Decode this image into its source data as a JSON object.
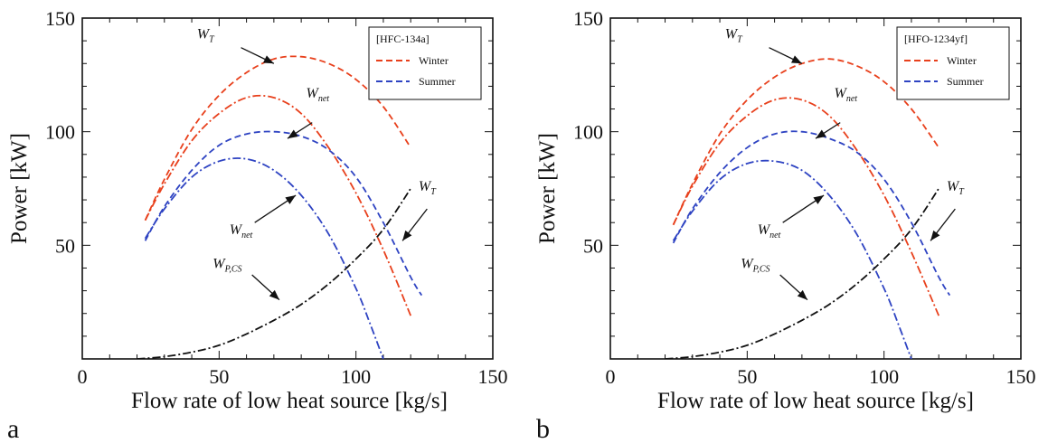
{
  "colors": {
    "winter": "#e8401c",
    "summer": "#2e43c2",
    "pump": "#111111",
    "axis": "#111111"
  },
  "chart_data": [
    {
      "type": "line",
      "panel": "a",
      "xlabel": "Flow rate of low heat source [kg/s]",
      "ylabel": "Power [kW]",
      "xlim": [
        0,
        150
      ],
      "ylim": [
        0,
        150
      ],
      "xticks": [
        "0",
        "50",
        "100",
        "150"
      ],
      "yticks": [
        "50",
        "100",
        "150"
      ],
      "legend": {
        "title": "[HFC-134a]",
        "placement": "top-right",
        "entries": [
          "Winter",
          "Summer"
        ]
      },
      "series": [
        {
          "name": "Winter",
          "quantity": "W_T",
          "style": "dashed",
          "color": "winter",
          "x": [
            23,
            30,
            40,
            50,
            60,
            70,
            80,
            90,
            100,
            110,
            120
          ],
          "y": [
            61,
            79,
            101,
            116,
            126,
            132,
            133,
            130,
            123,
            111,
            93
          ]
        },
        {
          "name": "Winter",
          "quantity": "W_net",
          "style": "dashdot",
          "color": "winter",
          "x": [
            23,
            30,
            40,
            50,
            60,
            70,
            80,
            90,
            100,
            110,
            120
          ],
          "y": [
            61,
            77,
            96,
            108,
            115,
            115,
            108,
            93,
            73,
            48,
            19
          ]
        },
        {
          "name": "Summer",
          "quantity": "W_T",
          "style": "dashed",
          "color": "summer",
          "x": [
            23,
            30,
            40,
            50,
            60,
            70,
            80,
            90,
            100,
            110,
            120,
            124
          ],
          "y": [
            52,
            67,
            83,
            94,
            99,
            100,
            98,
            92,
            80,
            60,
            36,
            28
          ]
        },
        {
          "name": "Summer",
          "quantity": "W_net",
          "style": "dashdot",
          "color": "summer",
          "x": [
            23,
            30,
            40,
            50,
            60,
            70,
            80,
            90,
            100,
            105,
            110
          ],
          "y": [
            53,
            66,
            80,
            87,
            88,
            83,
            72,
            55,
            31,
            16,
            0
          ]
        },
        {
          "name": "",
          "quantity": "W_P,CS",
          "style": "dashdot",
          "color": "pump",
          "x": [
            20,
            30,
            40,
            50,
            60,
            70,
            80,
            90,
            100,
            110,
            120
          ],
          "y": [
            0,
            1,
            3,
            6,
            11,
            17,
            24,
            33,
            44,
            57,
            75
          ]
        }
      ],
      "annotations": [
        {
          "main": "W",
          "sub": "T"
        },
        {
          "main": "W",
          "sub": "net"
        },
        {
          "main": "W",
          "sub": "net"
        },
        {
          "main": "W",
          "sub": "T"
        },
        {
          "main": "W",
          "sub": "P,CS"
        }
      ]
    },
    {
      "type": "line",
      "panel": "b",
      "xlabel": "Flow rate of low heat source [kg/s]",
      "ylabel": "Power [kW]",
      "xlim": [
        0,
        150
      ],
      "ylim": [
        0,
        150
      ],
      "xticks": [
        "0",
        "50",
        "100",
        "150"
      ],
      "yticks": [
        "50",
        "100",
        "150"
      ],
      "legend": {
        "title": "[HFO-1234yf]",
        "placement": "top-right",
        "entries": [
          "Winter",
          "Summer"
        ]
      },
      "series": [
        {
          "name": "Winter",
          "quantity": "W_T",
          "style": "dashed",
          "color": "winter",
          "x": [
            23,
            30,
            40,
            50,
            60,
            70,
            80,
            90,
            100,
            110,
            120
          ],
          "y": [
            59,
            77,
            99,
            114,
            124,
            130,
            132,
            129,
            122,
            110,
            93
          ]
        },
        {
          "name": "Winter",
          "quantity": "W_net",
          "style": "dashdot",
          "color": "winter",
          "x": [
            23,
            30,
            40,
            50,
            60,
            70,
            80,
            90,
            100,
            110,
            120
          ],
          "y": [
            59,
            76,
            95,
            107,
            114,
            114,
            107,
            92,
            72,
            47,
            19
          ]
        },
        {
          "name": "Summer",
          "quantity": "W_T",
          "style": "dashed",
          "color": "summer",
          "x": [
            23,
            30,
            40,
            50,
            60,
            70,
            80,
            90,
            100,
            110,
            120,
            124
          ],
          "y": [
            51,
            66,
            82,
            93,
            99,
            100,
            97,
            91,
            79,
            60,
            36,
            28
          ]
        },
        {
          "name": "Summer",
          "quantity": "W_net",
          "style": "dashdot",
          "color": "summer",
          "x": [
            23,
            30,
            40,
            50,
            60,
            70,
            80,
            90,
            100,
            105,
            110
          ],
          "y": [
            52,
            65,
            79,
            86,
            87,
            83,
            72,
            55,
            31,
            16,
            0
          ]
        },
        {
          "name": "",
          "quantity": "W_P,CS",
          "style": "dashdot",
          "color": "pump",
          "x": [
            20,
            30,
            40,
            50,
            60,
            70,
            80,
            90,
            100,
            110,
            120
          ],
          "y": [
            0,
            1,
            3,
            6,
            11,
            17,
            24,
            33,
            44,
            57,
            75
          ]
        }
      ],
      "annotations": [
        {
          "main": "W",
          "sub": "T"
        },
        {
          "main": "W",
          "sub": "net"
        },
        {
          "main": "W",
          "sub": "net"
        },
        {
          "main": "W",
          "sub": "T"
        },
        {
          "main": "W",
          "sub": "P,CS"
        }
      ]
    }
  ]
}
